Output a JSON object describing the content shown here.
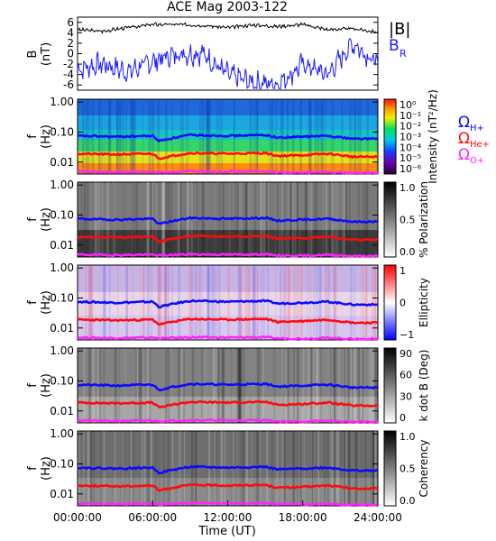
{
  "figure": {
    "title": "ACE Mag 2003-122",
    "xlabel": "Time (UT)",
    "x_ticklabels": [
      "00:00:00",
      "06:00:00",
      "12:00:00",
      "18:00:00",
      "24:00:00"
    ]
  },
  "legend": {
    "mag": {
      "b_total": "|B|",
      "b_r": "B",
      "b_r_sub": "R"
    },
    "ion": {
      "symbol": "Ω",
      "h": "H+",
      "he": "He+",
      "o": "O+"
    }
  },
  "colors": {
    "b_total": "#000000",
    "b_r": "#1a1aff",
    "h_plus": "#0a0aff",
    "he_plus": "#ff0a0a",
    "o_plus": "#ff22ff"
  },
  "chart_data": [
    {
      "type": "line",
      "name": "magnetic-field",
      "ylabel": "B (nT)",
      "yticks": [
        "6",
        "4",
        "2",
        "0",
        "-2",
        "-4",
        "-6"
      ],
      "ylim": [
        -7,
        7
      ],
      "xlim_hours": [
        0,
        24
      ],
      "series": [
        {
          "name": "|B|",
          "x_hours": [
            0,
            2,
            4,
            6,
            8,
            10,
            12,
            14,
            16,
            18,
            20,
            22,
            24
          ],
          "values": [
            4.6,
            4.3,
            5.0,
            5.6,
            5.6,
            5.4,
            5.0,
            5.5,
            5.2,
            5.6,
            4.6,
            4.8,
            4.1
          ]
        },
        {
          "name": "B_R",
          "x_hours": [
            0,
            2,
            4,
            6,
            8,
            10,
            12,
            14,
            16,
            18,
            20,
            22,
            24
          ],
          "values": [
            -3,
            -2,
            -3.5,
            -1.5,
            0,
            0,
            -4,
            -5.5,
            -6,
            -2,
            -4,
            2,
            -2
          ]
        }
      ]
    },
    {
      "type": "heatmap",
      "name": "intensity",
      "ylabel": "f (Hz)",
      "yticks": [
        "1.00",
        "0.10",
        "0.01"
      ],
      "cbar_label": "Intensity (nT²/Hz)",
      "cbar_ticks": [
        "10⁰",
        "10⁻¹",
        "10⁻²",
        "10⁻³",
        "10⁻⁴",
        "10⁻⁵",
        "10⁻⁶"
      ],
      "colormap": "rainbow"
    },
    {
      "type": "heatmap",
      "name": "polarization",
      "ylabel": "f (Hz)",
      "yticks": [
        "1.00",
        "0.10",
        "0.01"
      ],
      "cbar_label": "% Polarization",
      "cbar_ticks": [
        "1.0",
        "0.5",
        "0.0"
      ],
      "colormap": "greys"
    },
    {
      "type": "heatmap",
      "name": "ellipticity",
      "ylabel": "f (Hz)",
      "yticks": [
        "1.00",
        "0.10",
        "0.01"
      ],
      "cbar_label": "Ellipticity",
      "cbar_ticks": [
        "1",
        "0",
        "−1"
      ],
      "colormap": "blue-white-red"
    },
    {
      "type": "heatmap",
      "name": "k-dot-b",
      "ylabel": "f (Hz)",
      "yticks": [
        "1.00",
        "0.10",
        "0.01"
      ],
      "cbar_label": "k dot B (Deg)",
      "cbar_ticks": [
        "90",
        "60",
        "30",
        "0"
      ],
      "colormap": "greys"
    },
    {
      "type": "heatmap",
      "name": "coherency",
      "ylabel": "f (Hz)",
      "yticks": [
        "1.00",
        "0.10",
        "0.01"
      ],
      "cbar_label": "Coherency",
      "cbar_ticks": [
        "1.0",
        "0.5",
        "0.0"
      ],
      "colormap": "greys"
    }
  ],
  "gyrofrequency_lines": {
    "H+": {
      "x_hours": [
        0,
        3,
        6,
        6.5,
        9,
        12,
        15,
        16,
        18,
        20,
        22,
        24
      ],
      "values_hz": [
        0.075,
        0.07,
        0.075,
        0.05,
        0.08,
        0.075,
        0.08,
        0.065,
        0.07,
        0.075,
        0.06,
        0.06
      ]
    },
    "He+": {
      "x_hours": [
        0,
        3,
        6,
        6.5,
        9,
        12,
        15,
        16,
        18,
        20,
        22,
        24
      ],
      "values_hz": [
        0.019,
        0.018,
        0.019,
        0.013,
        0.02,
        0.019,
        0.02,
        0.016,
        0.017,
        0.019,
        0.015,
        0.015
      ]
    },
    "O+": {
      "x_hours": [
        0,
        3,
        6,
        6.5,
        9,
        12,
        15,
        16,
        18,
        20,
        22,
        24
      ],
      "values_hz": [
        0.0048,
        0.0046,
        0.0048,
        0.0045,
        0.0049,
        0.0048,
        0.0049,
        0.0045,
        0.0044,
        0.0047,
        0.0043,
        0.0043
      ]
    }
  }
}
